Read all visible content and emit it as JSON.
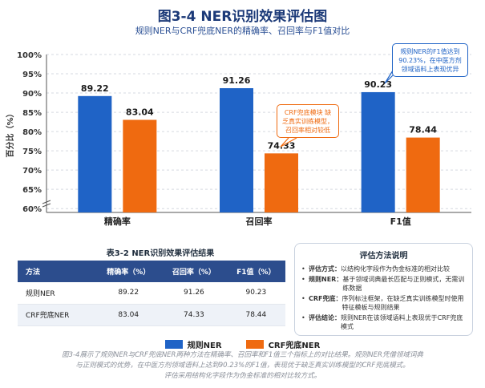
{
  "title": "图3-4 NER识别效果评估图",
  "subtitle": "规则NER与CRF兜底NER的精确率、召回率与F1值对比",
  "chart_data": {
    "type": "bar",
    "ylabel": "百分比（%）",
    "ylim": [
      59,
      100
    ],
    "yticks": [
      "60%",
      "65%",
      "70%",
      "75%",
      "80%",
      "85%",
      "90%",
      "95%",
      "100%"
    ],
    "ytick_values": [
      60,
      65,
      70,
      75,
      80,
      85,
      90,
      95,
      100
    ],
    "axis_break": true,
    "grid": true,
    "legend_position": "bottom",
    "categories": [
      "精确率",
      "召回率",
      "F1值"
    ],
    "series": [
      {
        "name": "规则NER",
        "color": "#1f63c6",
        "values": [
          89.22,
          91.26,
          90.23
        ]
      },
      {
        "name": "CRF兜底NER",
        "color": "#ef6a10",
        "values": [
          83.04,
          74.33,
          78.44
        ]
      }
    ],
    "value_labels": [
      [
        "89.22",
        "91.26",
        "90.23"
      ],
      [
        "83.04",
        "74.33",
        "78.44"
      ]
    ],
    "annotations": [
      {
        "text": "规则NER的F1值达到 90.23%，在中医方剂 领域语料上表现优异",
        "color": "#1f63c6"
      },
      {
        "text": "CRF兜底模块 缺乏真实训练模型， 召回率相对较低",
        "color": "#ef6a10"
      }
    ]
  },
  "table": {
    "title": "表3-2 NER识别效果评估结果",
    "headers": [
      "方法",
      "精确率（%）",
      "召回率（%）",
      "F1值（%）"
    ],
    "rows": [
      [
        "规则NER",
        "89.22",
        "91.26",
        "90.23"
      ],
      [
        "CRF兜底NER",
        "83.04",
        "74.33",
        "78.44"
      ]
    ]
  },
  "methods": {
    "title": "评估方法说明",
    "items": [
      {
        "label": "评估方式：",
        "text": "以结构化字段作为伪金标准的相对比较"
      },
      {
        "label": "规则NER：",
        "text": "基于领域词典最长匹配与正则模式，无需训练数据"
      },
      {
        "label": "CRF兜底：",
        "text": "序列标注框架，在缺乏真实训练模型时使用特征模板与规则结果"
      },
      {
        "label": "评估结论：",
        "text": "规则NER在该领域语料上表现优于CRF兜底模式"
      }
    ]
  },
  "legend": {
    "items": [
      {
        "label": "规则NER",
        "color": "#1f63c6"
      },
      {
        "label": "CRF兜底NER",
        "color": "#ef6a10"
      }
    ]
  },
  "caption": {
    "line1": "图3-4展示了规则NER与CRF兜底NER两种方法在精确率、召回率和F1值三个指标上的对比结果。规则NER凭借领域词典",
    "line2": "与正则模式的优势，在中医方剂领域语料上达到90.23%的F1值，表现优于缺乏真实训练模型的CRF兜底模式。",
    "line3": "评估采用结构化字段作为伪金标准的相对比较方式。"
  }
}
